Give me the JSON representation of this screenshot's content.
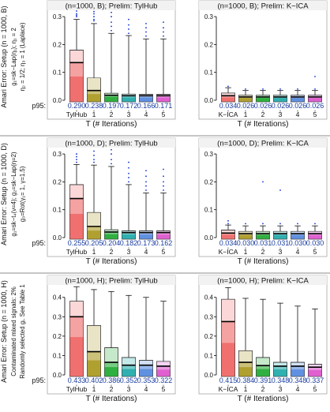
{
  "figure": {
    "row_side_labels": [
      [
        "Amari Error: Setup (n = 1000, B)",
        "g₁=sk−Lap(η₁); η₁ = 2",
        "η₂ = 1/2; η₃ = 1 (Laplace)"
      ],
      [
        "Amari Error: Setup (n = 1000, D)",
        "g₁=sk−t₄(ν=4); g₂=sk−Lap(η=2)",
        "g₃=Rot(γ₁= 1, γ=1.5)"
      ],
      [
        "Amari Error: Setup (n = 1000, H)",
        "Contaminated mixed signals: 2%",
        "Randomly selected gᵢ. See Table 1"
      ]
    ]
  },
  "chart_data": [
    {
      "type": "box",
      "title": "(n=1000, B);  Prelim: TylHub",
      "xlabel": "T (# Iterations)",
      "categories": [
        "TylHub",
        "1",
        "2",
        "3",
        "4",
        "5"
      ],
      "p95_label": "p95:",
      "p95": [
        "0.290",
        "0.238",
        "0.197",
        "0.172",
        "0.166",
        "0.171"
      ],
      "yticks": [
        "0.0",
        "0.1",
        "0.2",
        "0.3"
      ],
      "ylim": [
        0,
        0.32
      ],
      "boxes": [
        {
          "q1": 0.0,
          "median": 0.135,
          "q3": 0.18,
          "q1_shade": 0.085,
          "whisker_high": 0.29,
          "outliers": [
            0.3,
            0.31,
            0.305,
            0.32
          ]
        },
        {
          "q1": 0.0,
          "median": 0.035,
          "q3": 0.08,
          "q1_shade": 0.022,
          "whisker_high": 0.275,
          "outliers": [
            0.285,
            0.29,
            0.3,
            0.31,
            0.318
          ]
        },
        {
          "q1": 0.0,
          "median": 0.018,
          "q3": 0.025,
          "q1_shade": 0.012,
          "whisker_high": 0.24,
          "outliers": [
            0.25,
            0.265,
            0.28,
            0.3,
            0.315
          ]
        },
        {
          "q1": 0.0,
          "median": 0.016,
          "q3": 0.022,
          "q1_shade": 0.01,
          "whisker_high": 0.232,
          "outliers": [
            0.24,
            0.255,
            0.27,
            0.29
          ]
        },
        {
          "q1": 0.0,
          "median": 0.016,
          "q3": 0.021,
          "q1_shade": 0.01,
          "whisker_high": 0.22,
          "outliers": [
            0.23,
            0.245,
            0.26,
            0.275
          ]
        },
        {
          "q1": 0.0,
          "median": 0.016,
          "q3": 0.021,
          "q1_shade": 0.01,
          "whisker_high": 0.22,
          "outliers": [
            0.23,
            0.245,
            0.26,
            0.28
          ]
        }
      ]
    },
    {
      "type": "box",
      "title": "(n=1000, B);  Prelim: K−ICA",
      "xlabel": "T (# Iterations)",
      "categories": [
        "K−ICA",
        "1",
        "2",
        "3",
        "4",
        "5"
      ],
      "p95_label": "",
      "p95": [
        "0.034",
        "0.026",
        "0.026",
        "0.026",
        "0.026",
        "0.026"
      ],
      "yticks": [
        "0.0",
        "0.1",
        "0.2",
        "0.3"
      ],
      "ylim": [
        0,
        0.32
      ],
      "boxes": [
        {
          "q1": 0.0,
          "median": 0.016,
          "q3": 0.026,
          "q1_shade": 0.01,
          "whisker_high": 0.045,
          "outliers": [
            0.05
          ]
        },
        {
          "q1": 0.0,
          "median": 0.012,
          "q3": 0.018,
          "q1_shade": 0.008,
          "whisker_high": 0.035,
          "outliers": [
            0.04
          ]
        },
        {
          "q1": 0.0,
          "median": 0.012,
          "q3": 0.018,
          "q1_shade": 0.008,
          "whisker_high": 0.035,
          "outliers": [
            0.04
          ]
        },
        {
          "q1": 0.0,
          "median": 0.012,
          "q3": 0.018,
          "q1_shade": 0.008,
          "whisker_high": 0.035,
          "outliers": [
            0.04
          ]
        },
        {
          "q1": 0.0,
          "median": 0.012,
          "q3": 0.018,
          "q1_shade": 0.008,
          "whisker_high": 0.035,
          "outliers": [
            0.04
          ]
        },
        {
          "q1": 0.0,
          "median": 0.012,
          "q3": 0.018,
          "q1_shade": 0.008,
          "whisker_high": 0.035,
          "outliers": [
            0.04,
            0.085
          ]
        }
      ]
    },
    {
      "type": "box",
      "title": "(n=1000, D);  Prelim: TylHub",
      "xlabel": "T (# Iterations)",
      "categories": [
        "TylHub",
        "1",
        "2",
        "3",
        "4",
        "5"
      ],
      "p95_label": "p95:",
      "p95": [
        "0.255",
        "0.205",
        "0.204",
        "0.182",
        "0.173",
        "0.162"
      ],
      "yticks": [
        "0.0",
        "0.1",
        "0.2",
        "0.3"
      ],
      "ylim": [
        0,
        0.32
      ],
      "boxes": [
        {
          "q1": 0.0,
          "median": 0.14,
          "q3": 0.19,
          "q1_shade": 0.085,
          "whisker_high": 0.262,
          "outliers": [
            0.27,
            0.28,
            0.29,
            0.3
          ]
        },
        {
          "q1": 0.0,
          "median": 0.04,
          "q3": 0.09,
          "q1_shade": 0.025,
          "whisker_high": 0.26,
          "outliers": [
            0.27,
            0.28,
            0.295,
            0.31
          ]
        },
        {
          "q1": 0.0,
          "median": 0.02,
          "q3": 0.028,
          "q1_shade": 0.012,
          "whisker_high": 0.255,
          "outliers": [
            0.265,
            0.28,
            0.3,
            0.315
          ]
        },
        {
          "q1": 0.0,
          "median": 0.018,
          "q3": 0.024,
          "q1_shade": 0.011,
          "whisker_high": 0.19,
          "outliers": [
            0.2,
            0.215,
            0.23,
            0.25,
            0.27
          ]
        },
        {
          "q1": 0.0,
          "median": 0.018,
          "q3": 0.024,
          "q1_shade": 0.011,
          "whisker_high": 0.16,
          "outliers": [
            0.17,
            0.185,
            0.2,
            0.22,
            0.24
          ]
        },
        {
          "q1": 0.0,
          "median": 0.018,
          "q3": 0.024,
          "q1_shade": 0.011,
          "whisker_high": 0.16,
          "outliers": [
            0.17,
            0.185,
            0.2,
            0.22,
            0.245
          ]
        }
      ]
    },
    {
      "type": "box",
      "title": "(n=1000, D);  Prelim: K−ICA",
      "xlabel": "T (# Iterations)",
      "categories": [
        "K−ICA",
        "1",
        "2",
        "3",
        "4",
        "5"
      ],
      "p95_label": "",
      "p95": [
        "0.034",
        "0.030",
        "0.031",
        "0.031",
        "0.030",
        "0.030"
      ],
      "yticks": [
        "0.0",
        "0.1",
        "0.2",
        "0.3"
      ],
      "ylim": [
        0,
        0.32
      ],
      "boxes": [
        {
          "q1": 0.0,
          "median": 0.016,
          "q3": 0.027,
          "q1_shade": 0.01,
          "whisker_high": 0.045,
          "outliers": [
            0.05,
            0.06
          ]
        },
        {
          "q1": 0.0,
          "median": 0.014,
          "q3": 0.022,
          "q1_shade": 0.009,
          "whisker_high": 0.042,
          "outliers": [
            0.05
          ]
        },
        {
          "q1": 0.0,
          "median": 0.014,
          "q3": 0.022,
          "q1_shade": 0.009,
          "whisker_high": 0.042,
          "outliers": [
            0.05,
            0.2
          ]
        },
        {
          "q1": 0.0,
          "median": 0.014,
          "q3": 0.022,
          "q1_shade": 0.009,
          "whisker_high": 0.042,
          "outliers": [
            0.05,
            0.17
          ]
        },
        {
          "q1": 0.0,
          "median": 0.014,
          "q3": 0.022,
          "q1_shade": 0.009,
          "whisker_high": 0.042,
          "outliers": [
            0.05
          ]
        },
        {
          "q1": 0.0,
          "median": 0.014,
          "q3": 0.022,
          "q1_shade": 0.009,
          "whisker_high": 0.042,
          "outliers": [
            0.05
          ]
        }
      ]
    },
    {
      "type": "box",
      "title": "(n=1000, H);  Prelim: TylHub",
      "xlabel": "T (# Iterations)",
      "categories": [
        "TylHub",
        "1",
        "2",
        "3",
        "4",
        "5"
      ],
      "p95_label": "p95:",
      "p95": [
        "0.433",
        "0.402",
        "0.386",
        "0.352",
        "0.353",
        "0.322"
      ],
      "yticks": [
        "0.0",
        "0.1",
        "0.2",
        "0.3",
        "0.4"
      ],
      "ylim": [
        0,
        0.46
      ],
      "boxes": [
        {
          "q1": 0.0,
          "median": 0.3,
          "q3": 0.38,
          "q1_shade": 0.195,
          "whisker_high": 0.455,
          "outliers": []
        },
        {
          "q1": 0.0,
          "median": 0.12,
          "q3": 0.255,
          "q1_shade": 0.075,
          "whisker_high": 0.44,
          "outliers": []
        },
        {
          "q1": 0.0,
          "median": 0.065,
          "q3": 0.14,
          "q1_shade": 0.04,
          "whisker_high": 0.43,
          "outliers": []
        },
        {
          "q1": 0.0,
          "median": 0.05,
          "q3": 0.09,
          "q1_shade": 0.03,
          "whisker_high": 0.41,
          "outliers": []
        },
        {
          "q1": 0.0,
          "median": 0.05,
          "q3": 0.075,
          "q1_shade": 0.03,
          "whisker_high": 0.4,
          "outliers": []
        },
        {
          "q1": 0.0,
          "median": 0.045,
          "q3": 0.07,
          "q1_shade": 0.027,
          "whisker_high": 0.38,
          "outliers": []
        }
      ]
    },
    {
      "type": "box",
      "title": "(n=1000, H);  Prelim: K−ICA",
      "xlabel": "T (# Iterations)",
      "categories": [
        "K−ICA",
        "1",
        "2",
        "3",
        "4",
        "5"
      ],
      "p95_label": "",
      "p95": [
        "0.415",
        "0.384",
        "0.391",
        "0.348",
        "0.348",
        "0.337"
      ],
      "yticks": [
        "0.0",
        "0.1",
        "0.2",
        "0.3",
        "0.4"
      ],
      "ylim": [
        0,
        0.46
      ],
      "boxes": [
        {
          "q1": 0.0,
          "median": 0.275,
          "q3": 0.39,
          "q1_shade": 0.165,
          "whisker_high": 0.45,
          "outliers": []
        },
        {
          "q1": 0.0,
          "median": 0.065,
          "q3": 0.125,
          "q1_shade": 0.04,
          "whisker_high": 0.395,
          "outliers": []
        },
        {
          "q1": 0.0,
          "median": 0.048,
          "q3": 0.09,
          "q1_shade": 0.03,
          "whisker_high": 0.39,
          "outliers": []
        },
        {
          "q1": 0.0,
          "median": 0.045,
          "q3": 0.065,
          "q1_shade": 0.028,
          "whisker_high": 0.37,
          "outliers": []
        },
        {
          "q1": 0.0,
          "median": 0.045,
          "q3": 0.065,
          "q1_shade": 0.028,
          "whisker_high": 0.355,
          "outliers": []
        },
        {
          "q1": 0.0,
          "median": 0.04,
          "q3": 0.055,
          "q1_shade": 0.025,
          "whisker_high": 0.34,
          "outliers": []
        }
      ]
    }
  ],
  "colors": {
    "boxes": [
      "#f07070",
      "#b0a030",
      "#30b040",
      "#30b0b0",
      "#6090e0",
      "#e060d0"
    ],
    "p95_text": "#1a3da0",
    "outlier": "#1030d0",
    "axis": "#000000",
    "panel_border": "#888888",
    "title_bg": "#f2f2f2"
  }
}
